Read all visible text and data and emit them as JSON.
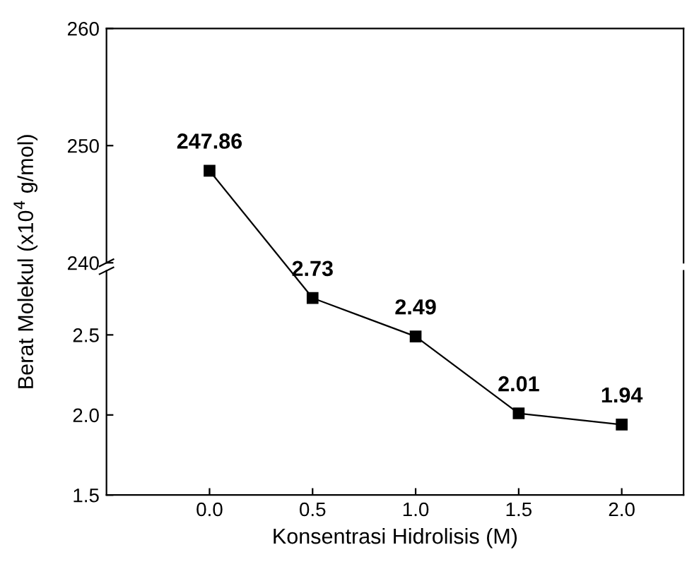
{
  "chart_data": [
    {
      "type": "line",
      "ylabel": "Berat Molekul (x10$^{4}$ g/mol)",
      "x": [
        0.0
      ],
      "series": [
        {
          "color": "#000000",
          "values": [
            247.86
          ]
        }
      ],
      "xlim": [
        -0.5,
        2.3
      ],
      "ylim": [
        240,
        260
      ],
      "yticks": [
        240,
        250,
        260
      ],
      "tick_labels": "y",
      "marker": "square",
      "data_labels": true
    },
    {
      "type": "line",
      "xlabel": "Konsentrasi Hidrolisis (M)",
      "x": [
        0.5,
        1.0,
        1.5,
        2.0
      ],
      "series": [
        {
          "color": "#000000",
          "values": [
            2.73,
            2.49,
            2.01,
            1.94
          ]
        }
      ],
      "xlim": [
        -0.5,
        2.3
      ],
      "xticks": [
        {
          "value": 0.0,
          "label": "0.0"
        },
        {
          "value": 0.5,
          "label": "0.5"
        },
        {
          "value": 1.0,
          "label": "1.0"
        },
        {
          "value": 1.5,
          "label": "1.5"
        },
        {
          "value": 2.0,
          "label": "2.0"
        }
      ],
      "ylim": [
        1.5,
        2.9
      ],
      "yticks": [
        {
          "value": 1.5,
          "label": "1.5"
        },
        {
          "value": 2.0,
          "label": "2.0"
        },
        {
          "value": 2.5,
          "label": "2.5"
        }
      ],
      "marker": "square",
      "data_labels": true
    }
  ]
}
